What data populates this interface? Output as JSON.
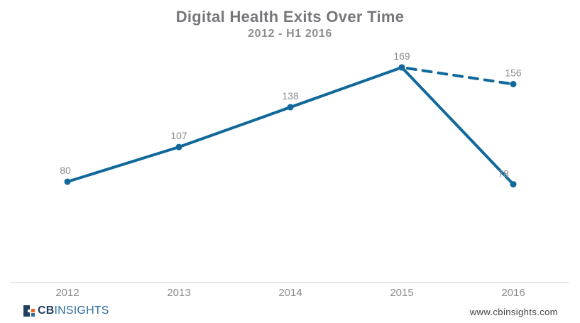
{
  "header": {
    "title": "Digital Health Exits Over Time",
    "subtitle": "2012 - H1 2016"
  },
  "chart_data": {
    "type": "line",
    "title": "Digital Health Exits Over Time",
    "subtitle": "2012 - H1 2016",
    "categories": [
      "2012",
      "2013",
      "2014",
      "2015",
      "2016"
    ],
    "series": [
      {
        "name": "solid-line",
        "style": "solid",
        "values": [
          80,
          107,
          138,
          169,
          78
        ]
      },
      {
        "name": "dashed-line",
        "style": "dashed",
        "values": [
          null,
          null,
          null,
          169,
          156
        ]
      }
    ],
    "data_labels_shown": true,
    "xlabel": "",
    "ylabel": "",
    "ylim": [
      0,
      200
    ],
    "grid": false,
    "legend": "none",
    "axis_line": "bottom-only"
  },
  "footer": {
    "logo_cb": "CB",
    "logo_insights": "INSIGHTS",
    "url": "www.cbinsights.com"
  },
  "colors": {
    "line": "#10689B",
    "axis": "#E2E2E2",
    "label": "#8A8C8F",
    "title": "#76777A",
    "logo_navy": "#21405F",
    "logo_blue": "#2F6FA0",
    "logo_orange": "#F26522",
    "url_text": "#414042"
  }
}
